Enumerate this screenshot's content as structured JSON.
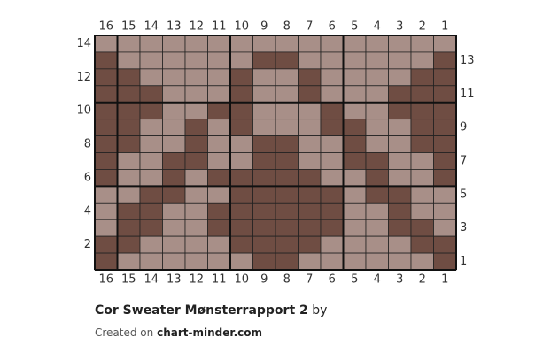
{
  "chart": {
    "column_labels": [
      16,
      15,
      14,
      13,
      12,
      11,
      10,
      9,
      8,
      7,
      6,
      5,
      4,
      3,
      2,
      1
    ],
    "row_labels": [
      14,
      13,
      12,
      11,
      10,
      9,
      8,
      7,
      6,
      5,
      4,
      3,
      2,
      1
    ],
    "light_color": "#a88f88",
    "dark_color": "#6f4d43",
    "rows": [
      "LLLLLLLLLLLLLLLL",
      "DLLLLLLDDLLLLLLD",
      "DDLLLLDLLDLLLLDD",
      "DDDLLLDLLDLLLDDD",
      "DDDLLDDLLLDLLDDD",
      "DDLLDLDLLLDDLLDD",
      "DDLLDLLDDLLDLLDD",
      "DLLDDLLDDLLDDLLD",
      "DLLDLDDDDDLLDLLD",
      "LLDDLLDDDDDLDDLL",
      "LDDLLDDDDDDLLDLL",
      "LDDLLDDDDDDLLDDL",
      "DDLLLLDDDDLLLLDD",
      "DLLLLLLDDLLLLLLD"
    ]
  },
  "footer": {
    "title": "Cor Sweater Mønsterrapport 2",
    "by": "by",
    "created_on": "Created on",
    "site": "chart-minder.com"
  }
}
